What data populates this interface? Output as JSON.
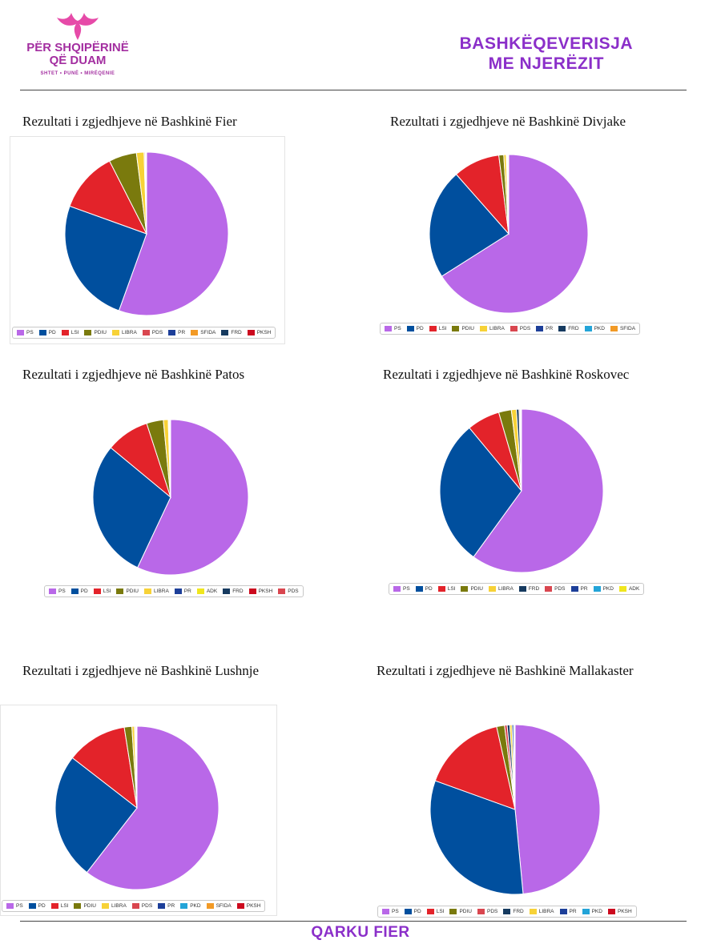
{
  "header": {
    "logo_lines": [
      "PËR SHQIPËRINË",
      "QË DUAM"
    ],
    "logo_sub": "SHTET • PUNË • MIRËQENIE",
    "title_lines": [
      "BASHKËQEVERISJA",
      "ME NJERËZIT"
    ]
  },
  "footer": {
    "text": "QARKU FIER"
  },
  "colors": {
    "PS": "#b968e8",
    "PD": "#004f9e",
    "LSI": "#e3232a",
    "PDIU": "#7a7a0d",
    "LIBRA": "#f7d237",
    "PDS": "#d9464f",
    "PR": "#1d3f99",
    "SFIDA": "#f29a26",
    "FRD": "#163a5f",
    "PKSH": "#cc0a1e",
    "PKD": "#23a4d8",
    "ADK": "#f0e61e"
  },
  "chart_data": [
    {
      "type": "pie",
      "title": "Rezultati i zgjedhjeve në Bashkinë Fier",
      "slices": [
        {
          "label": "PS",
          "value": 55.5
        },
        {
          "label": "PD",
          "value": 25.0
        },
        {
          "label": "LSI",
          "value": 12.0
        },
        {
          "label": "PDIU",
          "value": 5.5
        },
        {
          "label": "LIBRA",
          "value": 1.5
        },
        {
          "label": "PDS",
          "value": 0.2
        },
        {
          "label": "PR",
          "value": 0.1
        },
        {
          "label": "SFIDA",
          "value": 0.1
        },
        {
          "label": "FRD",
          "value": 0.05
        },
        {
          "label": "PKSH",
          "value": 0.05
        }
      ],
      "legend": [
        "PS",
        "PD",
        "LSI",
        "PDIU",
        "LIBRA",
        "PDS",
        "PR",
        "SFIDA",
        "FRD",
        "PKSH"
      ]
    },
    {
      "type": "pie",
      "title": "Rezultati i zgjedhjeve në  Bashkinë Divjake",
      "slices": [
        {
          "label": "PS",
          "value": 66.0
        },
        {
          "label": "PD",
          "value": 22.5
        },
        {
          "label": "LSI",
          "value": 9.5
        },
        {
          "label": "PDIU",
          "value": 1.0
        },
        {
          "label": "LIBRA",
          "value": 0.5
        },
        {
          "label": "PDS",
          "value": 0.1
        },
        {
          "label": "PR",
          "value": 0.1
        },
        {
          "label": "FRD",
          "value": 0.1
        },
        {
          "label": "PKD",
          "value": 0.1
        },
        {
          "label": "SFIDA",
          "value": 0.1
        }
      ],
      "legend": [
        "PS",
        "PD",
        "LSI",
        "PDIU",
        "LIBRA",
        "PDS",
        "PR",
        "FRD",
        "PKD",
        "SFIDA"
      ]
    },
    {
      "type": "pie",
      "title": "Rezultati i zgjedhjeve në  Bashkinë Patos",
      "slices": [
        {
          "label": "PS",
          "value": 57.0
        },
        {
          "label": "PD",
          "value": 29.0
        },
        {
          "label": "LSI",
          "value": 9.0
        },
        {
          "label": "PDIU",
          "value": 3.5
        },
        {
          "label": "LIBRA",
          "value": 1.0
        },
        {
          "label": "PR",
          "value": 0.1
        },
        {
          "label": "ADK",
          "value": 0.1
        },
        {
          "label": "FRD",
          "value": 0.1
        },
        {
          "label": "PKSH",
          "value": 0.1
        },
        {
          "label": "PDS",
          "value": 0.1
        }
      ],
      "legend": [
        "PS",
        "PD",
        "LSI",
        "PDIU",
        "LIBRA",
        "PR",
        "ADK",
        "FRD",
        "PKSH",
        "PDS"
      ]
    },
    {
      "type": "pie",
      "title": "Rezultati i zgjedhjeve në  Bashkinë Roskovec",
      "slices": [
        {
          "label": "PS",
          "value": 60.0
        },
        {
          "label": "PD",
          "value": 29.0
        },
        {
          "label": "LSI",
          "value": 6.5
        },
        {
          "label": "PDIU",
          "value": 2.5
        },
        {
          "label": "LIBRA",
          "value": 1.0
        },
        {
          "label": "FRD",
          "value": 0.5
        },
        {
          "label": "PDS",
          "value": 0.2
        },
        {
          "label": "PR",
          "value": 0.1
        },
        {
          "label": "PKD",
          "value": 0.1
        },
        {
          "label": "ADK",
          "value": 0.1
        }
      ],
      "legend": [
        "PS",
        "PD",
        "LSI",
        "PDIU",
        "LIBRA",
        "FRD",
        "PDS",
        "PR",
        "PKD",
        "ADK"
      ]
    },
    {
      "type": "pie",
      "title": "Rezultati i zgjedhjeve në  Bashkinë Lushnje",
      "slices": [
        {
          "label": "PS",
          "value": 60.5
        },
        {
          "label": "PD",
          "value": 25.0
        },
        {
          "label": "LSI",
          "value": 12.0
        },
        {
          "label": "PDIU",
          "value": 1.5
        },
        {
          "label": "LIBRA",
          "value": 0.5
        },
        {
          "label": "PDS",
          "value": 0.2
        },
        {
          "label": "PR",
          "value": 0.1
        },
        {
          "label": "PKD",
          "value": 0.1
        },
        {
          "label": "SFIDA",
          "value": 0.05
        },
        {
          "label": "PKSH",
          "value": 0.05
        }
      ],
      "legend": [
        "PS",
        "PD",
        "LSI",
        "PDIU",
        "LIBRA",
        "PDS",
        "PR",
        "PKD",
        "SFIDA",
        "PKSH"
      ]
    },
    {
      "type": "pie",
      "title": "Rezultati i zgjedhjeve në  Bashkinë Mallakaster",
      "slices": [
        {
          "label": "PS",
          "value": 48.5
        },
        {
          "label": "PD",
          "value": 32.0
        },
        {
          "label": "LSI",
          "value": 16.0
        },
        {
          "label": "PDIU",
          "value": 1.5
        },
        {
          "label": "PDS",
          "value": 0.5
        },
        {
          "label": "FRD",
          "value": 0.5
        },
        {
          "label": "LIBRA",
          "value": 0.4
        },
        {
          "label": "PR",
          "value": 0.3
        },
        {
          "label": "PKD",
          "value": 0.2
        },
        {
          "label": "PKSH",
          "value": 0.1
        }
      ],
      "legend": [
        "PS",
        "PD",
        "LSI",
        "PDIU",
        "PDS",
        "FRD",
        "LIBRA",
        "PR",
        "PKD",
        "PKSH"
      ]
    }
  ]
}
